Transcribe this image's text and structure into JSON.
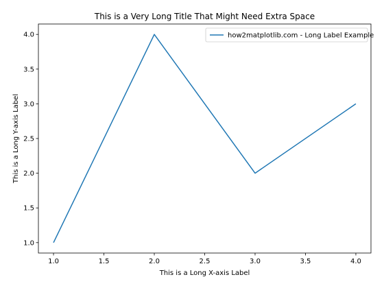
{
  "chart_data": {
    "type": "line",
    "title": "This is a Very Long Title That Might Need Extra Space",
    "xlabel": "This is a Long X-axis Label",
    "ylabel": "This is a Long Y-axis Label",
    "xlim": [
      0.85,
      4.15
    ],
    "ylim": [
      0.85,
      4.15
    ],
    "xticks": [
      1.0,
      1.5,
      2.0,
      2.5,
      3.0,
      3.5,
      4.0
    ],
    "xtick_labels": [
      "1.0",
      "1.5",
      "2.0",
      "2.5",
      "3.0",
      "3.5",
      "4.0"
    ],
    "yticks": [
      1.0,
      1.5,
      2.0,
      2.5,
      3.0,
      3.5,
      4.0
    ],
    "ytick_labels": [
      "1.0",
      "1.5",
      "2.0",
      "2.5",
      "3.0",
      "3.5",
      "4.0"
    ],
    "grid": false,
    "legend_position": "top-right",
    "series": [
      {
        "name": "how2matplotlib.com - Long Label Example",
        "color": "#1f77b4",
        "x": [
          1,
          2,
          3,
          4
        ],
        "y": [
          1,
          4,
          2,
          3
        ]
      }
    ]
  }
}
